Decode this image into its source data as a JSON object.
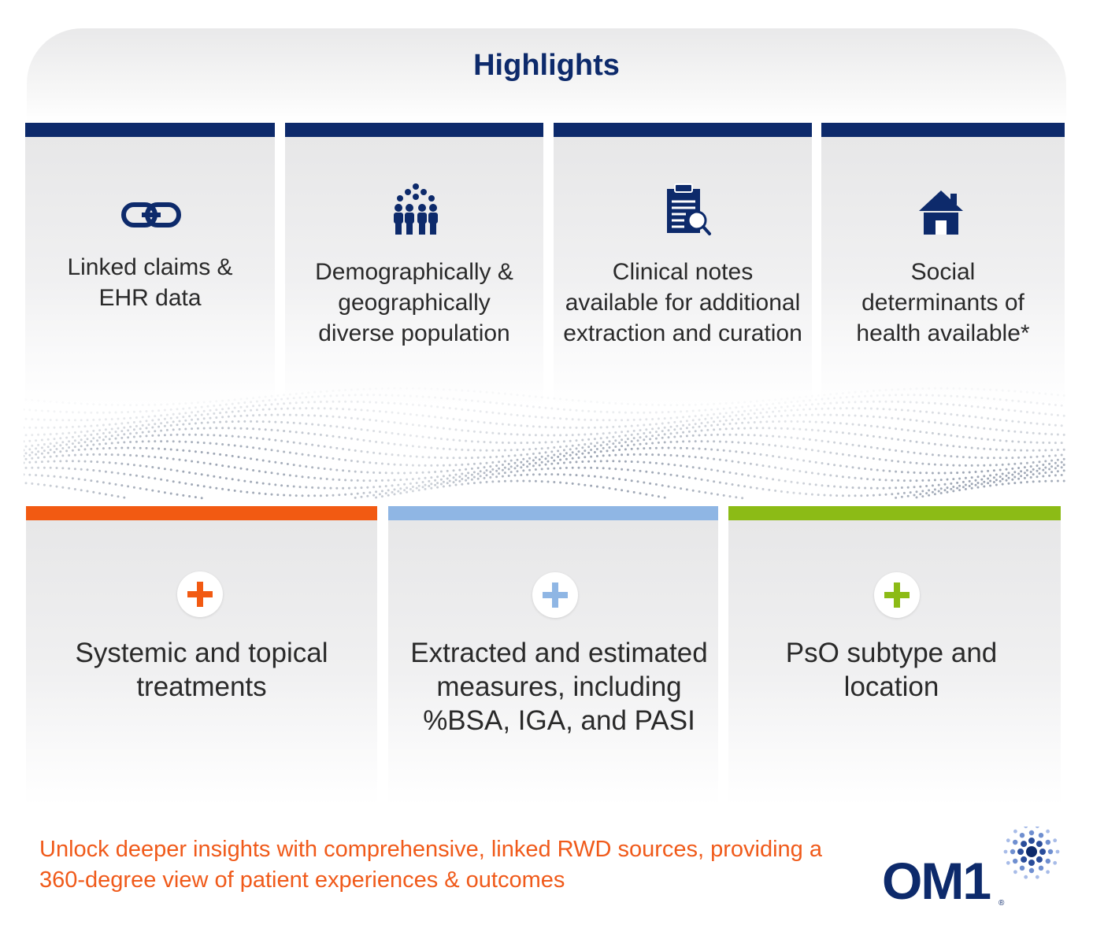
{
  "header": {
    "title": "Highlights"
  },
  "highlights": [
    {
      "label": "Linked claims & EHR data",
      "icon": "link-icon"
    },
    {
      "label": "Demographically & geographically diverse population",
      "icon": "population-icon"
    },
    {
      "label": "Clinical notes available for additional extraction and curation",
      "icon": "clinical-notes-icon"
    },
    {
      "label": "Social determinants of health available*",
      "icon": "house-icon"
    }
  ],
  "features": [
    {
      "label": "Systemic and topical treatments",
      "color": "#f25a12"
    },
    {
      "label": "Extracted and estimated measures, including %BSA, IGA, and PASI",
      "color": "#8fb6e4"
    },
    {
      "label": "PsO subtype and location",
      "color": "#8cbb16"
    }
  ],
  "footer": {
    "tagline": "Unlock deeper insights with comprehensive, linked RWD sources, providing a 360-degree view of patient experiences & outcomes",
    "logo_text": "OM1",
    "logo_mark": "®"
  },
  "colors": {
    "navy": "#0d2a6b",
    "orange": "#f05a1a"
  }
}
